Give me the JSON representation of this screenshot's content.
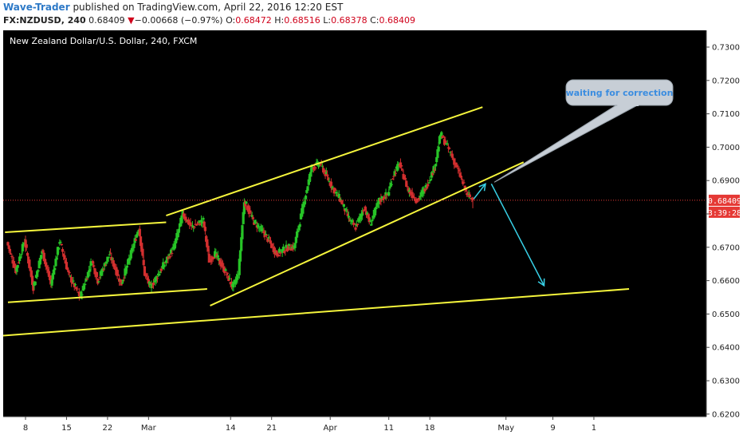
{
  "header": {
    "author": "Wave-Trader",
    "published_text": " published on TradingView.com, April 22, 2016 12:20 EST",
    "symbol": "FX:NZDUSD, 240",
    "last": "0.68409",
    "down_arrow": "▼",
    "change": "−0.00668 (−0.97%)",
    "o_label": "O:",
    "o_value": "0.68472",
    "h_label": "H:",
    "h_value": "0.68516",
    "l_label": "L:",
    "l_value": "0.68378",
    "c_label": "C:",
    "c_value": "0.68409"
  },
  "chart_data": {
    "type": "candlestick",
    "title": "New Zealand Dollar/U.S. Dollar, 240, FXCM",
    "y_ticks": [
      "0.73000",
      "0.72000",
      "0.71000",
      "0.70000",
      "0.69000",
      "0.68000",
      "0.67000",
      "0.66000",
      "0.65000",
      "0.64000",
      "0.63000",
      "0.62000"
    ],
    "ylim": [
      0.6195,
      0.7345
    ],
    "x_ticks": [
      {
        "label": "8",
        "day": 8
      },
      {
        "label": "15",
        "day": 15
      },
      {
        "label": "22",
        "day": 22
      },
      {
        "label": "Mar",
        "day": 29
      },
      {
        "label": "14",
        "day": 43
      },
      {
        "label": "21",
        "day": 50
      },
      {
        "label": "Apr",
        "day": 60
      },
      {
        "label": "11",
        "day": 70
      },
      {
        "label": "18",
        "day": 77
      },
      {
        "label": "May",
        "day": 90
      },
      {
        "label": "9",
        "day": 98
      },
      {
        "label": "1",
        "day": 105
      }
    ],
    "x_axis_start": "2016-02-05",
    "price_path": [
      [
        5,
        0.6715
      ],
      [
        6.5,
        0.663
      ],
      [
        8,
        0.672
      ],
      [
        9.5,
        0.658
      ],
      [
        11,
        0.669
      ],
      [
        12.5,
        0.659
      ],
      [
        14,
        0.672
      ],
      [
        15.5,
        0.662
      ],
      [
        17.5,
        0.655
      ],
      [
        19.5,
        0.666
      ],
      [
        20.5,
        0.66
      ],
      [
        22.5,
        0.668
      ],
      [
        24.5,
        0.659
      ],
      [
        26.5,
        0.67
      ],
      [
        27.5,
        0.676
      ],
      [
        28.5,
        0.662
      ],
      [
        29.5,
        0.658
      ],
      [
        31.5,
        0.664
      ],
      [
        33.5,
        0.67
      ],
      [
        35,
        0.68
      ],
      [
        36.5,
        0.676
      ],
      [
        38.5,
        0.678
      ],
      [
        39.5,
        0.666
      ],
      [
        40.5,
        0.668
      ],
      [
        42.5,
        0.662
      ],
      [
        43.5,
        0.658
      ],
      [
        44.5,
        0.662
      ],
      [
        45.5,
        0.684
      ],
      [
        47,
        0.678
      ],
      [
        49,
        0.674
      ],
      [
        51,
        0.668
      ],
      [
        53,
        0.67
      ],
      [
        54,
        0.67
      ],
      [
        55.5,
        0.682
      ],
      [
        57,
        0.694
      ],
      [
        58.5,
        0.695
      ],
      [
        60.5,
        0.688
      ],
      [
        62,
        0.684
      ],
      [
        63.5,
        0.678
      ],
      [
        64.5,
        0.676
      ],
      [
        66,
        0.682
      ],
      [
        67,
        0.677
      ],
      [
        68.5,
        0.684
      ],
      [
        70,
        0.686
      ],
      [
        71,
        0.692
      ],
      [
        72,
        0.695
      ],
      [
        73.5,
        0.687
      ],
      [
        75,
        0.684
      ],
      [
        76.5,
        0.688
      ],
      [
        78,
        0.694
      ],
      [
        79,
        0.704
      ],
      [
        80.5,
        0.699
      ],
      [
        82,
        0.693
      ],
      [
        83.5,
        0.686
      ],
      [
        84.5,
        0.6841
      ]
    ],
    "last_price": "0.68409",
    "countdown": "3:39:28",
    "trendlines": [
      {
        "from": [
          4.5,
          0.6745
        ],
        "to": [
          32,
          0.6775
        ]
      },
      {
        "from": [
          5,
          0.6535
        ],
        "to": [
          39,
          0.6575
        ]
      },
      {
        "from": [
          32,
          0.6795
        ],
        "to": [
          86,
          0.712
        ]
      },
      {
        "from": [
          39.5,
          0.6525
        ],
        "to": [
          93,
          0.6955
        ]
      },
      {
        "from": [
          4,
          0.6435
        ],
        "to": [
          111,
          0.6575
        ]
      }
    ],
    "arrows": [
      {
        "from": [
          84.5,
          0.6845
        ],
        "to": [
          86.5,
          0.689
        ]
      },
      {
        "from": [
          87.5,
          0.689
        ],
        "to": [
          96.5,
          0.6585
        ]
      }
    ],
    "callout": {
      "text": "waiting for correction",
      "anchor": [
        88,
        0.6895
      ]
    }
  },
  "colors": {
    "background": "#000000",
    "bull": "#27c427",
    "bear": "#d32f2f",
    "trendline": "#f5f53c",
    "arrow": "#38d0e6",
    "price_tag": "#e53935",
    "callout_fill": "#c7ced6"
  }
}
